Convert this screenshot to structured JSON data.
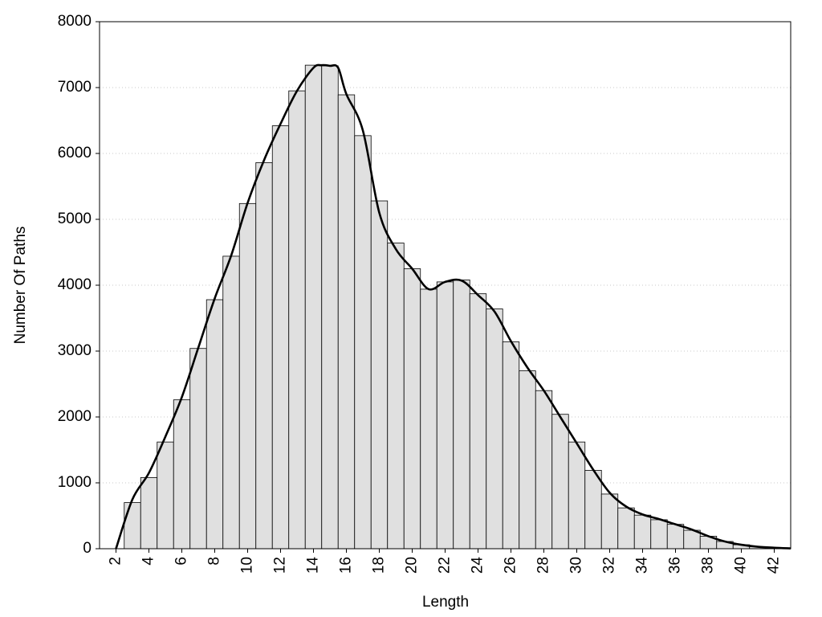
{
  "chart_data": {
    "type": "histogram",
    "xlabel": "Length",
    "ylabel": "Number Of Paths",
    "bins": [
      2.5,
      3.5,
      4.5,
      5.5,
      6.5,
      7.5,
      8.5,
      9.5,
      10.5,
      11.5,
      12.5,
      13.5,
      14.5,
      15.5,
      16.5,
      17.5,
      18.5,
      19.5,
      20.5,
      21.5,
      22.5,
      23.5,
      24.5,
      25.5,
      26.5,
      27.5,
      28.5,
      29.5,
      30.5,
      31.5,
      32.5,
      33.5,
      34.5,
      35.5,
      36.5,
      37.5,
      38.5,
      39.5,
      40.5,
      41.5,
      42.5
    ],
    "values": [
      700,
      1080,
      1620,
      2260,
      3040,
      3780,
      4440,
      5240,
      5860,
      6420,
      6950,
      7340,
      7330,
      6890,
      6270,
      5280,
      4640,
      4250,
      3940,
      4050,
      4080,
      3870,
      3640,
      3140,
      2700,
      2400,
      2040,
      1620,
      1190,
      830,
      620,
      510,
      440,
      370,
      280,
      190,
      110,
      60,
      30,
      10
    ],
    "color": "#e0e0e0",
    "curve": {
      "color": "#000000",
      "x": [
        2,
        3,
        4,
        5,
        6,
        7,
        8,
        9,
        10,
        11,
        12,
        13,
        14,
        14.5,
        15,
        15.5,
        16,
        17,
        18,
        19,
        20,
        21,
        22,
        23,
        24,
        25,
        26,
        27,
        28,
        29,
        30,
        31,
        32,
        33,
        34,
        35,
        36,
        37,
        38,
        39,
        40,
        41,
        42,
        43
      ],
      "values": [
        0,
        750,
        1150,
        1700,
        2300,
        3050,
        3800,
        4450,
        5250,
        5900,
        6450,
        6950,
        7300,
        7340,
        7330,
        7300,
        6900,
        6350,
        5100,
        4550,
        4250,
        3940,
        4050,
        4070,
        3850,
        3600,
        3150,
        2750,
        2400,
        2000,
        1600,
        1200,
        850,
        640,
        520,
        450,
        370,
        290,
        190,
        110,
        60,
        30,
        15,
        5
      ]
    },
    "xlim": [
      1,
      43
    ],
    "ylim": [
      0,
      8000
    ],
    "xticks": [
      2,
      4,
      6,
      8,
      10,
      12,
      14,
      16,
      18,
      20,
      22,
      24,
      26,
      28,
      30,
      32,
      34,
      36,
      38,
      40,
      42
    ],
    "yticks": [
      0,
      1000,
      2000,
      3000,
      4000,
      5000,
      6000,
      7000,
      8000
    ],
    "grid": true
  }
}
